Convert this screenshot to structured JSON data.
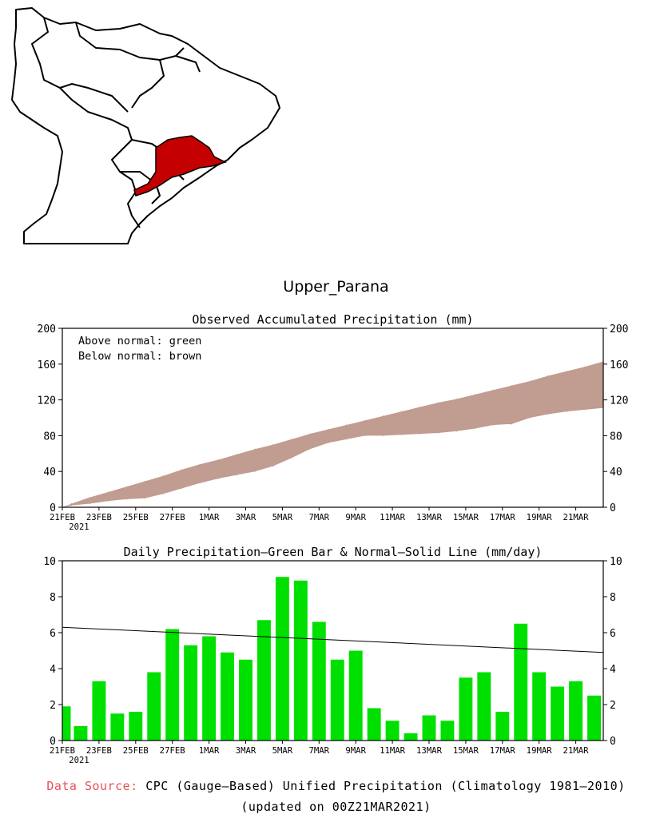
{
  "region_title": "Upper_Parana",
  "colors": {
    "highlight_region": "#c40000",
    "band_below_normal": "#c19c90",
    "bar_green": "#00e000",
    "source_label": "#e8505a"
  },
  "chart_data": [
    {
      "type": "area",
      "title": "Observed Accumulated Precipitation (mm)",
      "legend": [
        "Above normal: green",
        "Below normal: brown"
      ],
      "legend_position": "top-left",
      "ylim": [
        0,
        200
      ],
      "yticks": [
        "0",
        "40",
        "80",
        "120",
        "160",
        "200"
      ],
      "xticks": [
        "21FEB",
        "23FEB",
        "25FEB",
        "27FEB",
        "1MAR",
        "3MAR",
        "5MAR",
        "7MAR",
        "9MAR",
        "11MAR",
        "13MAR",
        "15MAR",
        "17MAR",
        "19MAR",
        "21MAR"
      ],
      "year_label": "2021",
      "x_days": [
        0,
        1,
        2,
        3,
        4,
        5,
        6,
        7,
        8,
        9,
        10,
        11,
        12,
        13,
        14,
        15,
        16,
        17,
        18,
        19,
        20,
        21,
        22,
        23,
        24,
        25,
        26,
        27,
        28,
        29
      ],
      "series": [
        {
          "name": "Normal",
          "values": [
            4,
            11,
            17,
            23,
            29,
            35,
            42,
            48,
            53,
            59,
            65,
            70,
            76,
            82,
            87,
            92,
            97,
            102,
            107,
            112,
            117,
            121,
            126,
            131,
            136,
            141,
            147,
            152,
            157,
            163
          ]
        },
        {
          "name": "Observed",
          "values": [
            2,
            4,
            7,
            9,
            10,
            15,
            21,
            27,
            32,
            36,
            40,
            46,
            55,
            65,
            72,
            76,
            80,
            80,
            81,
            82,
            83,
            85,
            88,
            92,
            93,
            100,
            104,
            107,
            109,
            111
          ]
        }
      ]
    },
    {
      "type": "bar",
      "title": "Daily Precipitation–Green Bar & Normal–Solid Line (mm/day)",
      "ylim": [
        0,
        10
      ],
      "yticks": [
        "0",
        "2",
        "4",
        "6",
        "8",
        "10"
      ],
      "xticks": [
        "21FEB",
        "23FEB",
        "25FEB",
        "27FEB",
        "1MAR",
        "3MAR",
        "5MAR",
        "7MAR",
        "9MAR",
        "11MAR",
        "13MAR",
        "15MAR",
        "17MAR",
        "19MAR",
        "21MAR"
      ],
      "year_label": "2021",
      "x_days": [
        0,
        1,
        2,
        3,
        4,
        5,
        6,
        7,
        8,
        9,
        10,
        11,
        12,
        13,
        14,
        15,
        16,
        17,
        18,
        19,
        20,
        21,
        22,
        23,
        24,
        25,
        26,
        27,
        28,
        29
      ],
      "series": [
        {
          "name": "Daily precipitation",
          "values": [
            1.9,
            0.8,
            3.3,
            1.5,
            1.6,
            3.8,
            6.2,
            5.3,
            5.8,
            4.9,
            4.5,
            6.7,
            9.1,
            8.9,
            6.6,
            4.5,
            5.0,
            1.8,
            1.1,
            0.4,
            1.4,
            1.1,
            3.5,
            3.8,
            1.6,
            6.5,
            3.8,
            3.0,
            3.3,
            2.5
          ]
        },
        {
          "name": "Normal",
          "line_start": 6.3,
          "line_end": 4.9
        }
      ]
    }
  ],
  "footer": {
    "source_label": "Data Source:",
    "source_text": "CPC (Gauge–Based) Unified Precipitation (Climatology 1981–2010)",
    "updated_text": "(updated on 00Z21MAR2021)"
  }
}
